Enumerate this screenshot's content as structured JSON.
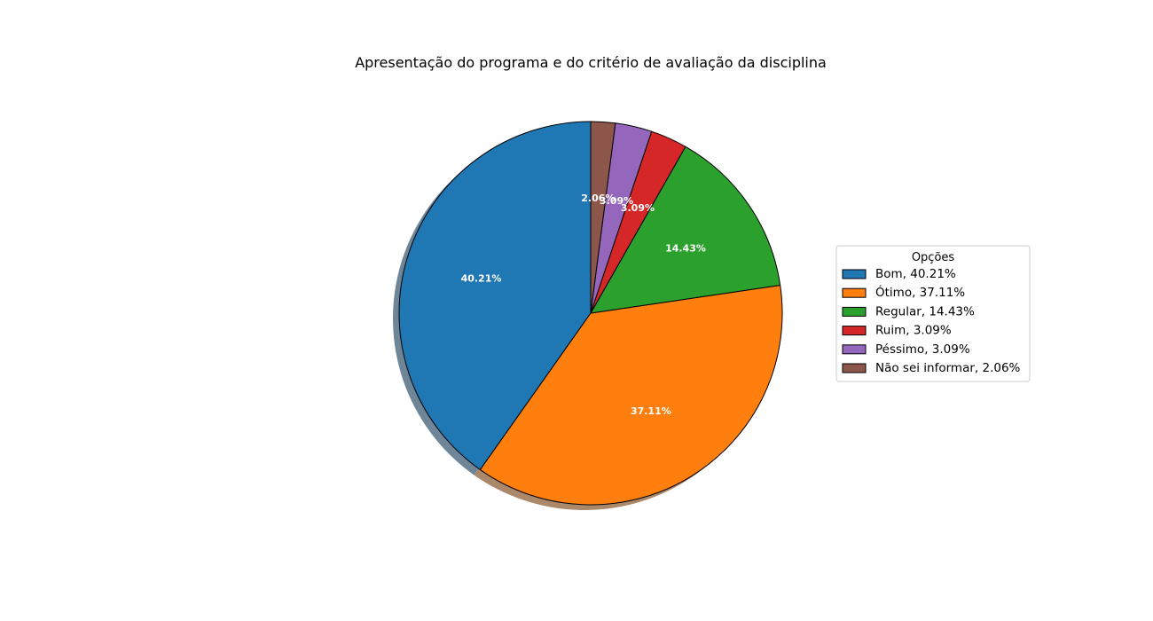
{
  "chart_data": {
    "type": "pie",
    "title": "Apresentação do programa e do critério de avaliação da disciplina",
    "legend_title": "Opções",
    "legend_position": "right",
    "shadow": true,
    "start_angle_deg": 90,
    "direction": "counterclockwise",
    "slices": [
      {
        "label": "Bom",
        "value": 40.21,
        "pct_label": "40.21%",
        "legend_label": "Bom, 40.21%",
        "color": "#1f77b4"
      },
      {
        "label": "Ótimo",
        "value": 37.11,
        "pct_label": "37.11%",
        "legend_label": "Ótimo, 37.11%",
        "color": "#ff7f0e"
      },
      {
        "label": "Regular",
        "value": 14.43,
        "pct_label": "14.43%",
        "legend_label": "Regular, 14.43%",
        "color": "#2ca02c"
      },
      {
        "label": "Ruim",
        "value": 3.09,
        "pct_label": "3.09%",
        "legend_label": "Ruim, 3.09%",
        "color": "#d62728"
      },
      {
        "label": "Péssimo",
        "value": 3.09,
        "pct_label": "3.09%",
        "legend_label": "Péssimo, 3.09%",
        "color": "#9467bd"
      },
      {
        "label": "Não sei informar",
        "value": 2.06,
        "pct_label": "2.06%",
        "legend_label": "Não sei informar, 2.06%",
        "color": "#8c564b"
      }
    ]
  }
}
